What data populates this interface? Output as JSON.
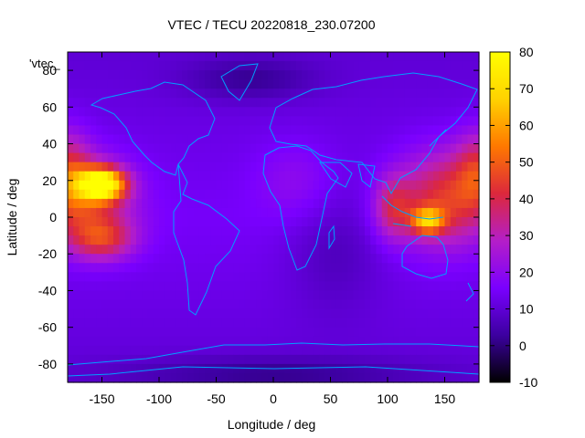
{
  "chart_data": {
    "type": "heatmap",
    "title": "VTEC / TECU 20220818_230.07200",
    "xlabel": "Longitude / deg",
    "ylabel": "Latitude / deg",
    "key_label": "'vtec_",
    "xlim": [
      -180,
      180
    ],
    "ylim": [
      -90,
      90
    ],
    "x_ticks": [
      -150,
      -100,
      -50,
      0,
      50,
      100,
      150
    ],
    "y_ticks": [
      -80,
      -60,
      -40,
      -20,
      0,
      20,
      40,
      60,
      80
    ],
    "colorbar": {
      "min": -10,
      "max": 80,
      "ticks": [
        -10,
        0,
        10,
        20,
        30,
        40,
        50,
        60,
        70,
        80
      ]
    },
    "vtec_features": [
      {
        "lon": -150,
        "lat": 18,
        "value": 78,
        "sigma_lon": 14,
        "sigma_lat": 6
      },
      {
        "lon": -165,
        "lat": 10,
        "value": 42,
        "sigma_lon": 28,
        "sigma_lat": 16
      },
      {
        "lon": -150,
        "lat": -12,
        "value": 40,
        "sigma_lon": 20,
        "sigma_lat": 8
      },
      {
        "lon": -180,
        "lat": 25,
        "value": 36,
        "sigma_lon": 14,
        "sigma_lat": 16
      },
      {
        "lon": 150,
        "lat": 10,
        "value": 44,
        "sigma_lon": 28,
        "sigma_lat": 18
      },
      {
        "lon": 135,
        "lat": -2,
        "value": 52,
        "sigma_lon": 10,
        "sigma_lat": 5
      },
      {
        "lon": 180,
        "lat": 25,
        "value": 38,
        "sigma_lon": 14,
        "sigma_lat": 15
      },
      {
        "lon": 105,
        "lat": 5,
        "value": 36,
        "sigma_lon": 12,
        "sigma_lat": 12
      },
      {
        "lon": 20,
        "lat": 20,
        "value": 22,
        "sigma_lon": 25,
        "sigma_lat": 15
      },
      {
        "lon": 55,
        "lat": -15,
        "value": 8,
        "sigma_lon": 30,
        "sigma_lat": 25
      },
      {
        "lon": -20,
        "lat": 75,
        "value": 6,
        "sigma_lon": 40,
        "sigma_lat": 8
      },
      {
        "lon": 0,
        "lat": -85,
        "value": 6,
        "sigma_lon": 90,
        "sigma_lat": 6
      }
    ],
    "background_value": 15
  },
  "colors": {
    "coastline": "#00a0ff",
    "frame": "#000000",
    "palette": [
      "#000000",
      "#3c00a0",
      "#7a00ff",
      "#b41ec8",
      "#dc283c",
      "#ff7800",
      "#ffd200",
      "#ffff00"
    ]
  }
}
